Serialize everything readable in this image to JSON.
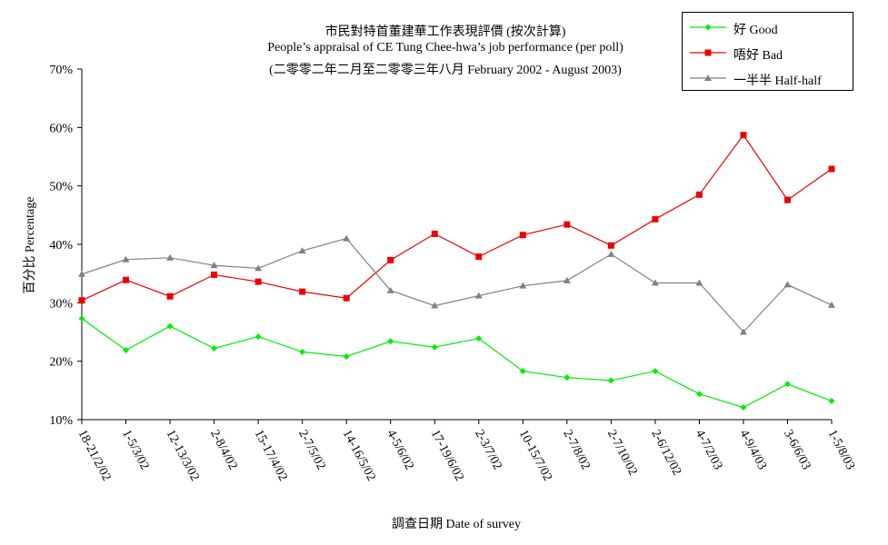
{
  "chart_data": {
    "type": "line",
    "title": "市民對特首董建華工作表現評價 (按次計算)",
    "subtitle": "People’s appraisal of CE Tung Chee-hwa’s job performance (per poll)",
    "subtitle2": "(二零零二年二月至二零零三年八月 February 2002 - August 2003)",
    "xlabel": "調查日期 Date of survey",
    "ylabel": "百分比 Percentage",
    "ylim": [
      10,
      70
    ],
    "yticks": [
      "10%",
      "20%",
      "30%",
      "40%",
      "50%",
      "60%",
      "70%"
    ],
    "ytick_values": [
      10,
      20,
      30,
      40,
      50,
      60,
      70
    ],
    "grid": false,
    "legend_position": "top-right",
    "categories": [
      "18-21/2/02",
      "1-5/3/02",
      "12-13/3/02",
      "2-8/4/02",
      "15-17/4/02",
      "2-7/5/02",
      "14-16/5/02",
      "4-5/6/02",
      "17-19/6/02",
      "2-3/7/02",
      "10-15/7/02",
      "2-7/8/02",
      "2-7/10/02",
      "2-6/12/02",
      "4-7/2/03",
      "4-9/4/03",
      "3-6/6/03",
      "1-5/8/03"
    ],
    "series": [
      {
        "name": "好 Good",
        "color": "#00ee00",
        "marker": "diamond",
        "values": [
          27.3,
          21.9,
          26.0,
          22.2,
          24.2,
          21.6,
          20.8,
          23.4,
          22.4,
          23.9,
          18.3,
          17.2,
          16.7,
          18.3,
          14.4,
          12.1,
          16.1,
          13.2
        ]
      },
      {
        "name": "唔好 Bad",
        "color": "#ee0000",
        "marker": "square",
        "values": [
          30.4,
          33.9,
          31.1,
          34.8,
          33.6,
          31.9,
          30.8,
          37.3,
          41.8,
          37.9,
          41.6,
          43.4,
          39.8,
          44.3,
          48.5,
          58.7,
          47.6,
          52.9
        ]
      },
      {
        "name": "一半半 Half-half",
        "color": "#808080",
        "marker": "triangle",
        "values": [
          34.9,
          37.4,
          37.7,
          36.4,
          35.9,
          38.9,
          41.0,
          32.1,
          29.5,
          31.2,
          32.9,
          33.8,
          38.3,
          33.4,
          33.4,
          25.0,
          33.1,
          29.6
        ]
      }
    ]
  }
}
